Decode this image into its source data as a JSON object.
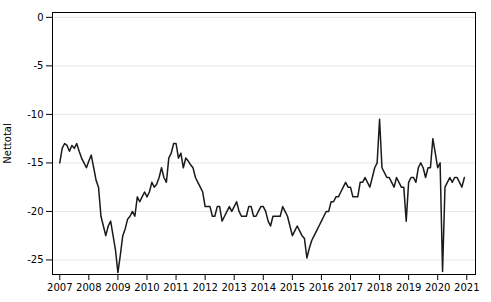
{
  "chart_data": {
    "type": "line",
    "ylabel": "Nettotal",
    "ylim": [
      -26.5,
      0.5
    ],
    "yticks": [
      0,
      -5,
      -10,
      -15,
      -20,
      -25
    ],
    "xlim": [
      2006.75,
      2021.3
    ],
    "xticks": [
      2007,
      2008,
      2009,
      2010,
      2011,
      2012,
      2013,
      2014,
      2015,
      2016,
      2017,
      2018,
      2019,
      2020,
      2021
    ],
    "grid": "y",
    "color": "#1a1a1a",
    "x": [
      2007.0,
      2007.083,
      2007.167,
      2007.25,
      2007.333,
      2007.417,
      2007.5,
      2007.583,
      2007.667,
      2007.75,
      2007.833,
      2007.917,
      2008.0,
      2008.083,
      2008.167,
      2008.25,
      2008.333,
      2008.417,
      2008.5,
      2008.583,
      2008.667,
      2008.75,
      2008.833,
      2008.917,
      2009.0,
      2009.083,
      2009.167,
      2009.25,
      2009.333,
      2009.417,
      2009.5,
      2009.583,
      2009.667,
      2009.75,
      2009.833,
      2009.917,
      2010.0,
      2010.083,
      2010.167,
      2010.25,
      2010.333,
      2010.417,
      2010.5,
      2010.583,
      2010.667,
      2010.75,
      2010.833,
      2010.917,
      2011.0,
      2011.083,
      2011.167,
      2011.25,
      2011.333,
      2011.417,
      2011.5,
      2011.583,
      2011.667,
      2011.75,
      2011.833,
      2011.917,
      2012.0,
      2012.083,
      2012.167,
      2012.25,
      2012.333,
      2012.417,
      2012.5,
      2012.583,
      2012.667,
      2012.75,
      2012.833,
      2012.917,
      2013.0,
      2013.083,
      2013.167,
      2013.25,
      2013.333,
      2013.417,
      2013.5,
      2013.583,
      2013.667,
      2013.75,
      2013.833,
      2013.917,
      2014.0,
      2014.083,
      2014.167,
      2014.25,
      2014.333,
      2014.417,
      2014.5,
      2014.583,
      2014.667,
      2014.75,
      2014.833,
      2014.917,
      2015.0,
      2015.083,
      2015.167,
      2015.25,
      2015.333,
      2015.417,
      2015.5,
      2015.583,
      2015.667,
      2015.75,
      2015.833,
      2015.917,
      2016.0,
      2016.083,
      2016.167,
      2016.25,
      2016.333,
      2016.417,
      2016.5,
      2016.583,
      2016.667,
      2016.75,
      2016.833,
      2016.917,
      2017.0,
      2017.083,
      2017.167,
      2017.25,
      2017.333,
      2017.417,
      2017.5,
      2017.583,
      2017.667,
      2017.75,
      2017.833,
      2017.917,
      2018.0,
      2018.083,
      2018.167,
      2018.25,
      2018.333,
      2018.417,
      2018.5,
      2018.583,
      2018.667,
      2018.75,
      2018.833,
      2018.917,
      2019.0,
      2019.083,
      2019.167,
      2019.25,
      2019.333,
      2019.417,
      2019.5,
      2019.583,
      2019.667,
      2019.75,
      2019.833,
      2019.917,
      2020.0,
      2020.083,
      2020.167,
      2020.25,
      2020.333,
      2020.417,
      2020.5,
      2020.583,
      2020.667,
      2020.75,
      2020.833,
      2020.917
    ],
    "y": [
      -15.0,
      -13.5,
      -13.0,
      -13.2,
      -13.8,
      -13.2,
      -13.5,
      -13.0,
      -13.8,
      -14.5,
      -15.0,
      -15.5,
      -14.8,
      -14.2,
      -15.5,
      -16.8,
      -17.5,
      -20.5,
      -21.5,
      -22.5,
      -21.5,
      -21.0,
      -22.5,
      -24.0,
      -26.3,
      -24.5,
      -22.5,
      -21.8,
      -20.8,
      -20.5,
      -20.0,
      -20.5,
      -18.5,
      -19.0,
      -18.5,
      -18.0,
      -18.5,
      -18.0,
      -17.0,
      -17.5,
      -17.2,
      -16.5,
      -15.5,
      -16.5,
      -17.0,
      -14.5,
      -14.0,
      -13.0,
      -13.0,
      -14.5,
      -14.0,
      -15.5,
      -14.5,
      -14.8,
      -15.2,
      -15.5,
      -16.5,
      -17.0,
      -17.5,
      -18.0,
      -19.5,
      -19.5,
      -19.5,
      -20.5,
      -20.5,
      -19.5,
      -19.5,
      -21.0,
      -20.5,
      -20.0,
      -19.5,
      -20.0,
      -19.5,
      -19.0,
      -20.0,
      -20.5,
      -20.5,
      -20.5,
      -19.5,
      -19.5,
      -20.5,
      -20.5,
      -20.0,
      -19.5,
      -19.5,
      -20.0,
      -21.0,
      -21.5,
      -20.5,
      -20.5,
      -20.5,
      -20.5,
      -19.5,
      -20.0,
      -20.5,
      -21.5,
      -22.5,
      -22.0,
      -21.5,
      -22.0,
      -22.5,
      -22.8,
      -24.8,
      -23.8,
      -23.0,
      -22.5,
      -22.0,
      -21.5,
      -21.0,
      -20.5,
      -20.0,
      -20.0,
      -19.0,
      -19.0,
      -18.5,
      -18.5,
      -18.0,
      -17.5,
      -17.0,
      -17.5,
      -17.5,
      -18.5,
      -18.5,
      -18.5,
      -17.0,
      -17.0,
      -16.5,
      -17.0,
      -17.5,
      -16.5,
      -15.5,
      -15.0,
      -10.5,
      -15.5,
      -16.0,
      -16.5,
      -16.5,
      -17.0,
      -17.5,
      -16.5,
      -17.0,
      -17.5,
      -17.5,
      -21.0,
      -17.0,
      -16.5,
      -16.5,
      -17.0,
      -15.5,
      -15.0,
      -15.5,
      -16.5,
      -15.5,
      -15.5,
      -12.5,
      -14.0,
      -15.5,
      -15.0,
      -26.2,
      -17.5,
      -17.0,
      -16.5,
      -17.0,
      -16.5,
      -16.5,
      -17.0,
      -17.5,
      -16.5
    ]
  }
}
